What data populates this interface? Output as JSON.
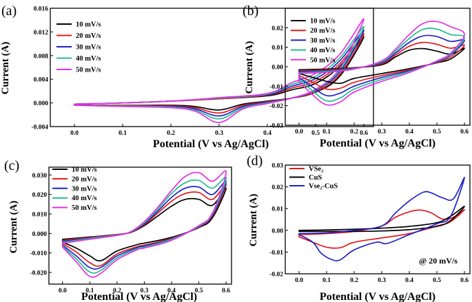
{
  "chart_data": [
    {
      "panel": "(a)",
      "type": "line",
      "title": "",
      "xlabel": "Potential (V vs Ag/AgCl)",
      "ylabel": "Current (A)",
      "xlim": [
        -0.05,
        0.62
      ],
      "ylim": [
        -0.004,
        0.016
      ],
      "xticks": [
        0.0,
        0.1,
        0.2,
        0.3,
        0.4,
        0.5,
        0.6
      ],
      "xtick_labels": [
        "0.0",
        "0.1",
        "0.2",
        "0.3",
        "0.4",
        "0.5",
        "0.6"
      ],
      "yticks": [
        -0.004,
        0.0,
        0.004,
        0.008,
        0.012,
        0.016
      ],
      "ytick_labels": [
        "-0.004",
        "0.000",
        "0.004",
        "0.008",
        "0.012",
        "0.016"
      ],
      "legend_position": "top-left",
      "series": [
        {
          "name": "10 mV/s",
          "color": "#000000",
          "x": [
            0.0,
            0.1,
            0.2,
            0.3,
            0.4,
            0.45,
            0.5,
            0.55,
            0.6,
            0.55,
            0.5,
            0.45,
            0.4,
            0.35,
            0.3,
            0.25,
            0.2,
            0.1,
            0.0
          ],
          "y": [
            -0.0002,
            0.0,
            0.0003,
            0.0007,
            0.0012,
            0.0022,
            0.0033,
            0.0062,
            0.0112,
            0.0045,
            0.0018,
            0.0008,
            0.0003,
            -0.0002,
            -0.0012,
            -0.0006,
            -0.0004,
            -0.0004,
            -0.0004
          ]
        },
        {
          "name": "20 mV/s",
          "color": "#e41a1c",
          "x": [
            0.0,
            0.1,
            0.2,
            0.3,
            0.4,
            0.45,
            0.5,
            0.55,
            0.6,
            0.55,
            0.5,
            0.45,
            0.4,
            0.35,
            0.3,
            0.25,
            0.2,
            0.1,
            0.0
          ],
          "y": [
            -0.0002,
            0.0,
            0.0003,
            0.0007,
            0.0013,
            0.0025,
            0.0037,
            0.0066,
            0.0117,
            0.0048,
            0.0019,
            0.0008,
            0.0002,
            -0.0004,
            -0.0017,
            -0.0008,
            -0.0005,
            -0.0004,
            -0.0004
          ]
        },
        {
          "name": "30 mV/s",
          "color": "#1f22c8",
          "x": [
            0.0,
            0.1,
            0.2,
            0.3,
            0.4,
            0.45,
            0.5,
            0.55,
            0.6,
            0.55,
            0.5,
            0.45,
            0.4,
            0.35,
            0.3,
            0.25,
            0.2,
            0.1,
            0.0
          ],
          "y": [
            -0.0002,
            0.0,
            0.0003,
            0.0008,
            0.0014,
            0.0028,
            0.0041,
            0.0071,
            0.0123,
            0.0052,
            0.0021,
            0.0008,
            0.0001,
            -0.0006,
            -0.0022,
            -0.001,
            -0.0006,
            -0.0005,
            -0.0004
          ]
        },
        {
          "name": "40 mV/s",
          "color": "#1fbf8f",
          "x": [
            0.0,
            0.1,
            0.2,
            0.3,
            0.4,
            0.45,
            0.5,
            0.55,
            0.6,
            0.55,
            0.5,
            0.45,
            0.4,
            0.35,
            0.3,
            0.25,
            0.2,
            0.1,
            0.0
          ],
          "y": [
            -0.0002,
            0.0,
            0.0003,
            0.0008,
            0.0015,
            0.0031,
            0.0045,
            0.0076,
            0.0129,
            0.0055,
            0.0022,
            0.0008,
            0.0,
            -0.0008,
            -0.0027,
            -0.0012,
            -0.0007,
            -0.0005,
            -0.0004
          ]
        },
        {
          "name": "50 mV/s",
          "color": "#e62ee6",
          "x": [
            0.0,
            0.1,
            0.2,
            0.3,
            0.4,
            0.45,
            0.5,
            0.55,
            0.6,
            0.55,
            0.5,
            0.45,
            0.4,
            0.35,
            0.3,
            0.25,
            0.2,
            0.1,
            0.0
          ],
          "y": [
            -0.0002,
            0.0,
            0.0003,
            0.0009,
            0.0016,
            0.0034,
            0.005,
            0.0082,
            0.0142,
            0.0058,
            0.0023,
            0.0008,
            -0.0001,
            -0.001,
            -0.0033,
            -0.0014,
            -0.0008,
            -0.0006,
            -0.0004
          ]
        }
      ]
    },
    {
      "panel": "(b)",
      "type": "line",
      "title": "",
      "xlabel": "Potential (V vs Ag/AgCl)",
      "ylabel": "Current (A)",
      "xlim": [
        -0.05,
        0.62
      ],
      "ylim": [
        -0.03,
        0.03
      ],
      "xticks": [
        0.0,
        0.1,
        0.2,
        0.3,
        0.4,
        0.5,
        0.6
      ],
      "xtick_labels": [
        "0.0",
        "0.1",
        "0.2",
        "0.3",
        "0.4",
        "0.5",
        "0.6"
      ],
      "yticks": [
        -0.03,
        -0.02,
        -0.01,
        0.0,
        0.01,
        0.02
      ],
      "ytick_labels": [
        "-0.03",
        "-0.02",
        "-0.01",
        "0.00",
        "0.01",
        "0.02"
      ],
      "legend_position": "top-left",
      "series": [
        {
          "name": "10 mV/s",
          "color": "#000000",
          "x": [
            0.0,
            0.1,
            0.2,
            0.3,
            0.35,
            0.4,
            0.45,
            0.5,
            0.55,
            0.6,
            0.55,
            0.5,
            0.4,
            0.3,
            0.2,
            0.15,
            0.1,
            0.05,
            0.0
          ],
          "y": [
            -0.0015,
            -0.0012,
            -0.0005,
            0.001,
            0.005,
            0.0085,
            0.0093,
            0.008,
            0.0065,
            0.0095,
            0.004,
            0.002,
            -0.001,
            -0.0035,
            -0.006,
            -0.0085,
            -0.0075,
            -0.0055,
            -0.0035
          ]
        },
        {
          "name": "20 mV/s",
          "color": "#e41a1c",
          "x": [
            0.0,
            0.1,
            0.2,
            0.3,
            0.35,
            0.4,
            0.45,
            0.5,
            0.55,
            0.6,
            0.55,
            0.5,
            0.4,
            0.3,
            0.2,
            0.15,
            0.1,
            0.05,
            0.0
          ],
          "y": [
            -0.002,
            -0.0016,
            -0.0006,
            0.0015,
            0.006,
            0.0105,
            0.0125,
            0.0115,
            0.0095,
            0.011,
            0.005,
            0.0022,
            -0.0015,
            -0.0045,
            -0.008,
            -0.011,
            -0.0115,
            -0.008,
            -0.0045
          ]
        },
        {
          "name": "30 mV/s",
          "color": "#1f22c8",
          "x": [
            0.0,
            0.1,
            0.2,
            0.3,
            0.35,
            0.4,
            0.45,
            0.5,
            0.55,
            0.6,
            0.55,
            0.5,
            0.4,
            0.3,
            0.2,
            0.15,
            0.1,
            0.05,
            0.0
          ],
          "y": [
            -0.0025,
            -0.002,
            -0.0008,
            0.002,
            0.007,
            0.0125,
            0.0158,
            0.0155,
            0.013,
            0.0135,
            0.006,
            0.0025,
            -0.002,
            -0.0055,
            -0.01,
            -0.0135,
            -0.0148,
            -0.0105,
            -0.0055
          ]
        },
        {
          "name": "40 mV/s",
          "color": "#1fbf8f",
          "x": [
            0.0,
            0.1,
            0.2,
            0.3,
            0.35,
            0.4,
            0.45,
            0.5,
            0.55,
            0.6,
            0.55,
            0.5,
            0.4,
            0.3,
            0.2,
            0.15,
            0.1,
            0.05,
            0.0
          ],
          "y": [
            -0.003,
            -0.0024,
            -0.001,
            0.0025,
            0.008,
            0.0145,
            0.0192,
            0.0193,
            0.0165,
            0.015,
            0.0065,
            0.0028,
            -0.0025,
            -0.0065,
            -0.0115,
            -0.016,
            -0.0175,
            -0.0125,
            -0.0065
          ]
        },
        {
          "name": "50 mV/s",
          "color": "#e62ee6",
          "x": [
            0.0,
            0.1,
            0.2,
            0.3,
            0.35,
            0.4,
            0.45,
            0.5,
            0.55,
            0.6,
            0.55,
            0.5,
            0.4,
            0.3,
            0.2,
            0.15,
            0.1,
            0.05,
            0.0
          ],
          "y": [
            -0.0035,
            -0.0028,
            -0.0012,
            0.003,
            0.009,
            0.0165,
            0.0222,
            0.0232,
            0.0205,
            0.0165,
            0.007,
            0.003,
            -0.003,
            -0.0075,
            -0.013,
            -0.018,
            -0.0195,
            -0.0145,
            -0.0075
          ]
        }
      ]
    },
    {
      "panel": "(c)",
      "type": "line",
      "title": "",
      "xlabel": "Potential (V vs Ag/AgCl)",
      "ylabel": "Current (A)",
      "xlim": [
        -0.05,
        0.62
      ],
      "ylim": [
        -0.026,
        0.034
      ],
      "xticks": [
        0.0,
        0.1,
        0.2,
        0.3,
        0.4,
        0.5,
        0.6
      ],
      "xtick_labels": [
        "0.0",
        "0.1",
        "0.2",
        "0.3",
        "0.4",
        "0.5",
        "0.6"
      ],
      "yticks": [
        -0.02,
        -0.01,
        0.0,
        0.01,
        0.02,
        0.03
      ],
      "ytick_labels": [
        "-0.020",
        "-0.010",
        "0.000",
        "0.010",
        "0.020",
        "0.030"
      ],
      "legend_position": "top-left",
      "series": [
        {
          "name": "10 mV/s",
          "color": "#000000",
          "x": [
            0.0,
            0.1,
            0.2,
            0.25,
            0.3,
            0.35,
            0.4,
            0.45,
            0.5,
            0.55,
            0.6,
            0.55,
            0.5,
            0.4,
            0.3,
            0.28,
            0.2,
            0.14,
            0.1,
            0.05,
            0.0
          ],
          "y": [
            -0.003,
            -0.0018,
            -0.0005,
            0.0005,
            0.004,
            0.009,
            0.014,
            0.0175,
            0.0175,
            0.0145,
            0.0232,
            0.008,
            0.003,
            -0.002,
            -0.005,
            -0.0055,
            -0.009,
            -0.014,
            -0.0115,
            -0.0075,
            -0.0045
          ]
        },
        {
          "name": "20 mV/s",
          "color": "#e41a1c",
          "x": [
            0.0,
            0.1,
            0.2,
            0.25,
            0.3,
            0.35,
            0.4,
            0.45,
            0.5,
            0.55,
            0.6,
            0.55,
            0.5,
            0.4,
            0.3,
            0.28,
            0.2,
            0.14,
            0.1,
            0.05,
            0.0
          ],
          "y": [
            -0.0035,
            -0.002,
            -0.0006,
            0.0006,
            0.0045,
            0.0105,
            0.0165,
            0.0205,
            0.021,
            0.0175,
            0.0252,
            0.009,
            0.0033,
            -0.0025,
            -0.006,
            -0.0065,
            -0.0105,
            -0.0165,
            -0.015,
            -0.0095,
            -0.0052
          ]
        },
        {
          "name": "30 mV/s",
          "color": "#1f22c8",
          "x": [
            0.0,
            0.1,
            0.2,
            0.25,
            0.3,
            0.35,
            0.4,
            0.45,
            0.5,
            0.55,
            0.6,
            0.55,
            0.5,
            0.4,
            0.3,
            0.28,
            0.2,
            0.14,
            0.1,
            0.05,
            0.0
          ],
          "y": [
            -0.004,
            -0.0023,
            -0.0007,
            0.0007,
            0.005,
            0.0115,
            0.0185,
            0.0232,
            0.0238,
            0.02,
            0.0268,
            0.0095,
            0.0035,
            -0.0028,
            -0.0065,
            -0.007,
            -0.0115,
            -0.0175,
            -0.0175,
            -0.0115,
            -0.006
          ]
        },
        {
          "name": "40 mV/s",
          "color": "#1fbf8f",
          "x": [
            0.0,
            0.1,
            0.2,
            0.25,
            0.3,
            0.35,
            0.4,
            0.45,
            0.5,
            0.55,
            0.6,
            0.55,
            0.5,
            0.4,
            0.3,
            0.28,
            0.2,
            0.14,
            0.1,
            0.05,
            0.0
          ],
          "y": [
            -0.0045,
            -0.0026,
            -0.0008,
            0.0008,
            0.0055,
            0.0125,
            0.0205,
            0.026,
            0.0272,
            0.0232,
            0.0285,
            0.01,
            0.0037,
            -0.003,
            -0.007,
            -0.0075,
            -0.0125,
            -0.019,
            -0.0198,
            -0.013,
            -0.0065
          ]
        },
        {
          "name": "50 mV/s",
          "color": "#e62ee6",
          "x": [
            0.0,
            0.1,
            0.2,
            0.25,
            0.3,
            0.35,
            0.4,
            0.45,
            0.5,
            0.55,
            0.6,
            0.55,
            0.5,
            0.4,
            0.3,
            0.28,
            0.2,
            0.14,
            0.1,
            0.05,
            0.0
          ],
          "y": [
            -0.005,
            -0.003,
            -0.001,
            0.0009,
            0.006,
            0.0135,
            0.022,
            0.0292,
            0.0312,
            0.0268,
            0.0315,
            0.0105,
            0.004,
            -0.0035,
            -0.0075,
            -0.008,
            -0.0135,
            -0.0205,
            -0.022,
            -0.0145,
            -0.007
          ]
        }
      ]
    },
    {
      "panel": "(d)",
      "type": "line",
      "title": "",
      "xlabel": "Potential (V vs Ag/AgCl)",
      "ylabel": "Current (A)",
      "xlim": [
        -0.05,
        0.62
      ],
      "ylim": [
        -0.02,
        0.03
      ],
      "xticks": [
        0.0,
        0.1,
        0.2,
        0.3,
        0.4,
        0.5,
        0.6
      ],
      "xtick_labels": [
        "0.0",
        "0.1",
        "0.2",
        "0.3",
        "0.4",
        "0.5",
        "0.6"
      ],
      "yticks": [
        -0.02,
        -0.01,
        0.0,
        0.01,
        0.02,
        0.03
      ],
      "ytick_labels": [
        "-0.02",
        "-0.01",
        "0.00",
        "0.01",
        "0.02",
        "0.03"
      ],
      "legend_position": "top-left",
      "annotation": "@ 20 mV/s",
      "series": [
        {
          "name": "VSe₂",
          "color": "#e41a1c",
          "x": [
            0.0,
            0.1,
            0.2,
            0.3,
            0.35,
            0.4,
            0.44,
            0.48,
            0.52,
            0.56,
            0.6,
            0.55,
            0.5,
            0.4,
            0.3,
            0.2,
            0.15,
            0.1,
            0.05,
            0.0
          ],
          "y": [
            -0.002,
            -0.0015,
            -0.0005,
            0.002,
            0.006,
            0.0085,
            0.0093,
            0.008,
            0.0052,
            0.006,
            0.0095,
            0.004,
            0.002,
            -0.0015,
            -0.0035,
            -0.0055,
            -0.008,
            -0.0078,
            -0.0055,
            -0.003
          ]
        },
        {
          "name": "CuS",
          "color": "#000000",
          "x": [
            0.0,
            0.1,
            0.2,
            0.3,
            0.4,
            0.5,
            0.55,
            0.6,
            0.55,
            0.5,
            0.4,
            0.3,
            0.2,
            0.1,
            0.0
          ],
          "y": [
            0.0,
            0.0002,
            0.0005,
            0.001,
            0.0018,
            0.0035,
            0.0065,
            0.011,
            0.0045,
            0.0018,
            0.0003,
            -0.0003,
            -0.0005,
            -0.0005,
            -0.0005
          ]
        },
        {
          "name": "Vse₂-CuS",
          "color": "#1f22c8",
          "x": [
            0.0,
            0.1,
            0.2,
            0.3,
            0.35,
            0.4,
            0.45,
            0.48,
            0.52,
            0.56,
            0.6,
            0.55,
            0.5,
            0.4,
            0.32,
            0.28,
            0.2,
            0.15,
            0.12,
            0.08,
            0.05,
            0.0
          ],
          "y": [
            -0.0015,
            -0.0012,
            0.0,
            0.002,
            0.008,
            0.0135,
            0.0175,
            0.0172,
            0.015,
            0.0145,
            0.0242,
            0.0065,
            0.003,
            -0.002,
            -0.006,
            -0.0055,
            -0.009,
            -0.0135,
            -0.0135,
            -0.0105,
            -0.0055,
            -0.002
          ]
        }
      ]
    }
  ]
}
